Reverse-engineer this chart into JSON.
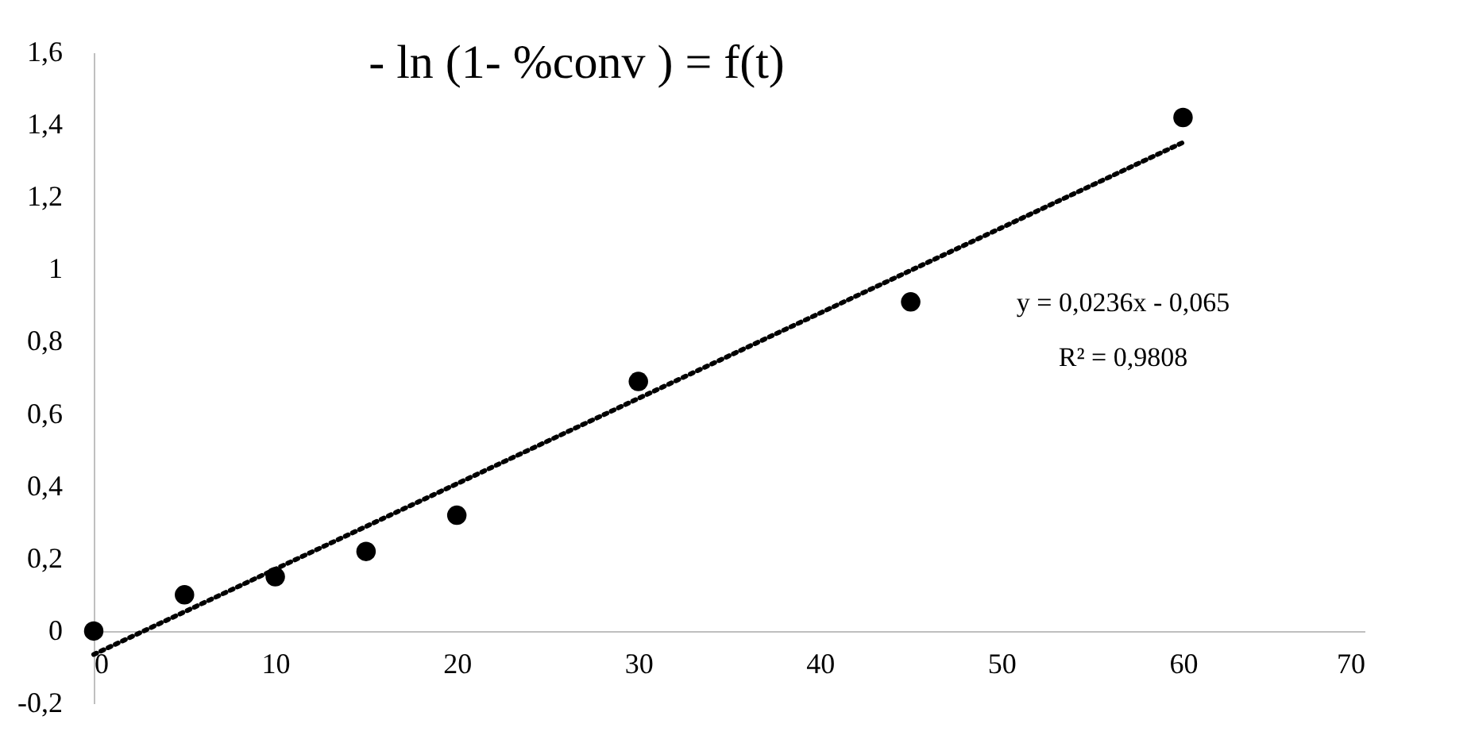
{
  "chart_data": {
    "type": "scatter",
    "title": "- ln (1- %conv ) = f(t)",
    "xlim": [
      0,
      70
    ],
    "xticks": [
      0,
      10,
      20,
      30,
      40,
      50,
      60,
      70
    ],
    "ylim": [
      -0.2,
      1.6
    ],
    "yticks": [
      {
        "value": -0.2,
        "label": "-0,2"
      },
      0,
      {
        "value": 0.2,
        "label": "0,2"
      },
      {
        "value": 0.4,
        "label": "0,4"
      },
      {
        "value": 0.6,
        "label": "0,6"
      },
      {
        "value": 0.8,
        "label": "0,8"
      },
      1,
      {
        "value": 1.2,
        "label": "1,2"
      },
      {
        "value": 1.4,
        "label": "1,4"
      },
      {
        "value": 1.6,
        "label": "1,6"
      }
    ],
    "grid": false,
    "series": [
      {
        "marker": "circle",
        "color": "#000000",
        "x": [
          0,
          5,
          10,
          15,
          20,
          30,
          45,
          60
        ],
        "values": [
          0,
          0.1,
          0.15,
          0.22,
          0.32,
          0.69,
          0.91,
          1.42
        ]
      },
      {
        "type": "line",
        "line_style": "dotted",
        "marker": "none",
        "color": "#000000",
        "x": [
          0,
          60
        ],
        "values": [
          -0.065,
          1.351
        ]
      }
    ],
    "annotations": [
      "y = 0,0236x - 0,065",
      "R² = 0,9808"
    ]
  }
}
